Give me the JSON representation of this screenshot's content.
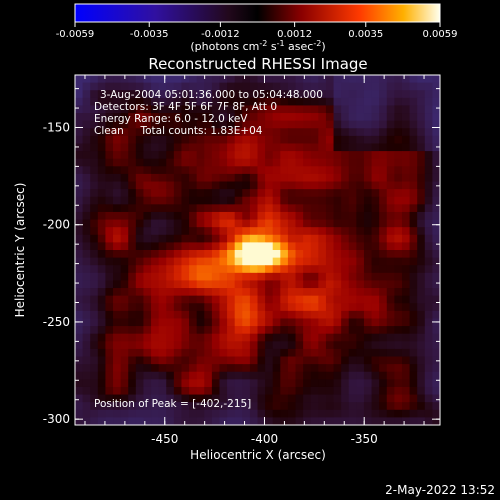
{
  "colorbar": {
    "ticks": [
      "-0.0059",
      "-0.0035",
      "-0.0012",
      "0.0012",
      "0.0035",
      "0.0059"
    ],
    "units_label": "(photons cm",
    "units_sup1": "-2",
    "units_mid": " s",
    "units_sup2": "-1",
    "units_end": " asec",
    "units_sup3": "-2",
    "units_close": ")"
  },
  "plot": {
    "title": "Reconstructed RHESSI Image",
    "xlabel": "Heliocentric X (arcsec)",
    "ylabel": "Heliocentric Y (arcsec)",
    "info_lines": [
      "3-Aug-2004 05:01:36.000 to 05:04:48.000",
      "Detectors: 3F 4F 5F 6F 7F 8F, Att 0",
      "Energy Range: 6.0 - 12.0 keV",
      "Clean     Total counts: 1.83E+04"
    ],
    "peak_label": "Position of Peak = [-402,-215]"
  },
  "footer_date": "2-May-2022 13:52",
  "colors": {
    "background": "#000000",
    "text": "#ffffff",
    "peak": "#fff7c0",
    "min": "#3a2a6e"
  },
  "chart_data": {
    "type": "heatmap",
    "title": "Reconstructed RHESSI Image",
    "xlabel": "Heliocentric X (arcsec)",
    "ylabel": "Heliocentric Y (arcsec)",
    "xlim": [
      -495,
      -312
    ],
    "ylim": [
      -303,
      -123
    ],
    "x_ticks": [
      -450,
      -400,
      -350
    ],
    "x_tick_labels": [
      "-450",
      "-400",
      "-350"
    ],
    "y_ticks": [
      -150,
      -200,
      -250,
      -300
    ],
    "y_tick_labels": [
      "-150",
      "-200",
      "-250",
      "-300"
    ],
    "colorbar_range": [
      -0.0059,
      0.0059
    ],
    "colorbar_ticks": [
      -0.0059,
      -0.0035,
      -0.0012,
      0.0012,
      0.0035,
      0.0059
    ],
    "peak_position": [
      -402,
      -215
    ],
    "energy_range_kev": [
      6.0,
      12.0
    ],
    "total_counts": 18300
  }
}
